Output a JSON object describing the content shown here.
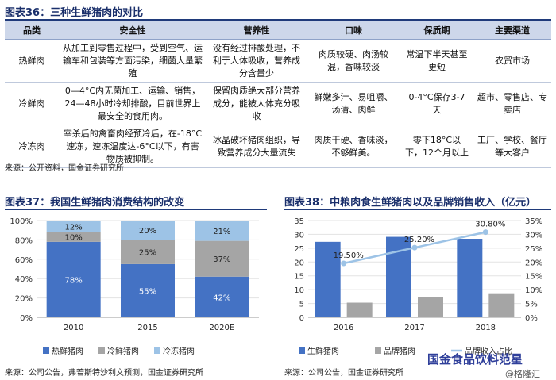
{
  "fig36": {
    "title": "图表36：三种生鲜猪肉的对比",
    "headers": [
      "品类",
      "安全性",
      "营养性",
      "口味",
      "保质期",
      "主要渠道"
    ],
    "rows": [
      [
        "热鲜肉",
        "从加工到零售过程中，受到空气、运输车和包装等方面污染，细菌大量繁殖",
        "没有经过排酸处理，不利于人体吸收，营养成分含量少",
        "肉质较硬、肉汤较混，香味较淡",
        "常温下半天甚至更短",
        "农贸市场"
      ],
      [
        "冷鲜肉",
        "0—4°C内无菌加工、运输、销售，24—48小时冷却排酸，目前世界上最安全的食用肉。",
        "保留肉质绝大部分营养成分，能被人体充分吸收",
        "鲜嫩多汁、易咀嚼、汤清、肉鲜",
        "0-4°C保存3-7天",
        "超市、零售店、专卖店"
      ],
      [
        "冷冻肉",
        "宰杀后的禽畜肉经预冷后，在-18°C速冻，速冻温度达-6°C以下，有害物质被抑制。",
        "冰晶破坏猪肉组织，导致营养成分大量流失",
        "肉质干硬、香味淡，不够鲜美。",
        "零下18°C以下，12个月以上",
        "工厂、学校、餐厅等大客户"
      ]
    ],
    "source": "来源：公开资料，国金证券研究所"
  },
  "fig37": {
    "title": "图表37：我国生鲜猪肉消费结构的改变",
    "source": "来源：公司公告，弗若斯特沙利文预测，国金证券研究所"
  },
  "fig38": {
    "title": "图表38：中粮肉食生鲜猪肉以及品牌销售收入（亿元）",
    "source": "来源：公司公告，国金证券研究所"
  },
  "watermark": {
    "line1": "国金食品饮料范星",
    "line2": "@格隆汇"
  },
  "colors": {
    "title": "#1a2f6b",
    "header_bg": "#cdd7ea",
    "blue": "#4472c4",
    "gray": "#a5a5a5",
    "light_blue": "#9dc3e6"
  },
  "chart_data": [
    {
      "type": "bar",
      "stacked": true,
      "percent": true,
      "categories": [
        "2010",
        "2015",
        "2020E"
      ],
      "series": [
        {
          "name": "热鲜猪肉",
          "values": [
            78,
            55,
            42
          ],
          "color": "#4472c4"
        },
        {
          "name": "冷鲜猪肉",
          "values": [
            10,
            25,
            37
          ],
          "color": "#a5a5a5"
        },
        {
          "name": "冷冻猪肉",
          "values": [
            12,
            20,
            21
          ],
          "color": "#9dc3e6"
        }
      ],
      "ylim": [
        0,
        100
      ],
      "yticks": [
        "0%",
        "20%",
        "40%",
        "60%",
        "80%",
        "100%"
      ],
      "legend": "bottom"
    },
    {
      "type": "bar",
      "categories": [
        "2016",
        "2017",
        "2018"
      ],
      "series": [
        {
          "name": "生鲜猪肉",
          "values": [
            27.3,
            29.1,
            28.4
          ],
          "color": "#4472c4",
          "axis": "left"
        },
        {
          "name": "品牌猪肉",
          "values": [
            5.3,
            7.3,
            8.7
          ],
          "color": "#a5a5a5",
          "axis": "left"
        },
        {
          "name": "品牌收入占比",
          "values": [
            19.5,
            25.2,
            30.8
          ],
          "labels": [
            "19.50%",
            "25.20%",
            "30.80%"
          ],
          "color": "#9dc3e6",
          "axis": "right",
          "type": "line"
        }
      ],
      "ylim": [
        0,
        35
      ],
      "yticks": [
        "0",
        "5",
        "10",
        "15",
        "20",
        "25",
        "30",
        "35"
      ],
      "y2lim": [
        0,
        35
      ],
      "y2ticks": [
        "0%",
        "5%",
        "10%",
        "15%",
        "20%",
        "25%",
        "30%",
        "35%"
      ],
      "legend": "bottom"
    }
  ]
}
